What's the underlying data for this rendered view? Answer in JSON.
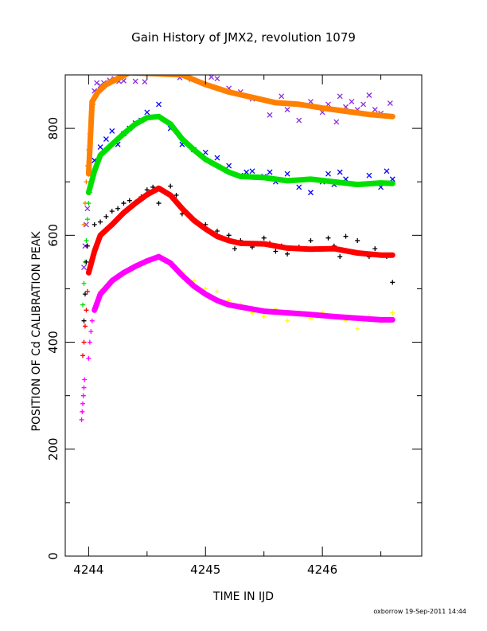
{
  "footer_text": "oxborrow 19-Sep-2011 14:44",
  "chart_data": {
    "type": "scatter",
    "title": "Gain History of JMX2, revolution 1079",
    "xlabel": "TIME IN IJD",
    "ylabel": "POSITION OF Cd CALIBRATION PEAK",
    "xlim": [
      4243.8,
      4246.85
    ],
    "ylim": [
      0,
      900
    ],
    "xticks": [
      4244,
      4245,
      4246
    ],
    "yticks": [
      0,
      200,
      400,
      600,
      800
    ],
    "grid": false,
    "legend": "none",
    "series": [
      {
        "color": "#8a2be2",
        "marker": "x",
        "points": [
          [
            4243.96,
            540
          ],
          [
            4243.97,
            580
          ],
          [
            4243.98,
            620
          ],
          [
            4243.99,
            650
          ],
          [
            4244.02,
            810
          ],
          [
            4244.05,
            870
          ],
          [
            4244.07,
            885
          ],
          [
            4244.1,
            880
          ],
          [
            4244.13,
            885
          ],
          [
            4244.18,
            890
          ],
          [
            4244.22,
            893
          ],
          [
            4244.26,
            888
          ],
          [
            4244.3,
            889
          ],
          [
            4244.4,
            888
          ],
          [
            4244.48,
            887
          ],
          [
            4244.78,
            895
          ],
          [
            4244.88,
            892
          ],
          [
            4245.05,
            896
          ],
          [
            4245.1,
            893
          ],
          [
            4245.2,
            875
          ],
          [
            4245.3,
            868
          ],
          [
            4245.4,
            855
          ],
          [
            4245.55,
            825
          ],
          [
            4245.65,
            860
          ],
          [
            4245.7,
            835
          ],
          [
            4245.8,
            815
          ],
          [
            4245.9,
            850
          ],
          [
            4246.0,
            830
          ],
          [
            4246.05,
            845
          ],
          [
            4246.12,
            812
          ],
          [
            4246.15,
            860
          ],
          [
            4246.2,
            840
          ],
          [
            4246.25,
            850
          ],
          [
            4246.3,
            835
          ],
          [
            4246.35,
            845
          ],
          [
            4246.4,
            862
          ],
          [
            4246.45,
            835
          ],
          [
            4246.5,
            828
          ],
          [
            4246.58,
            847
          ]
        ]
      },
      {
        "color": "#ff8000",
        "marker": "+",
        "points": [
          [
            4243.96,
            620
          ],
          [
            4243.97,
            660
          ],
          [
            4243.98,
            700
          ],
          [
            4243.99,
            730
          ],
          [
            4244.0,
            760
          ],
          [
            4244.01,
            790
          ],
          [
            4244.02,
            820
          ],
          [
            4244.04,
            845
          ],
          [
            4244.06,
            860
          ],
          [
            4244.09,
            872
          ],
          [
            4244.12,
            880
          ],
          [
            4244.16,
            887
          ],
          [
            4244.2,
            892
          ],
          [
            4244.25,
            897
          ],
          [
            4244.3,
            902
          ]
        ]
      },
      {
        "color": "#ff8000",
        "marker": "line",
        "points": [
          [
            4244.0,
            715
          ],
          [
            4244.03,
            850
          ],
          [
            4244.08,
            868
          ],
          [
            4244.15,
            882
          ],
          [
            4244.25,
            893
          ],
          [
            4244.35,
            904
          ],
          [
            4244.8,
            900
          ],
          [
            4245.0,
            882
          ],
          [
            4245.2,
            868
          ],
          [
            4245.4,
            858
          ],
          [
            4245.6,
            848
          ],
          [
            4245.8,
            845
          ],
          [
            4246.0,
            838
          ],
          [
            4246.2,
            832
          ],
          [
            4246.4,
            826
          ],
          [
            4246.6,
            822
          ]
        ]
      },
      {
        "color": "#0000ff",
        "marker": "x",
        "points": [
          [
            4244.05,
            740
          ],
          [
            4244.1,
            765
          ],
          [
            4244.15,
            780
          ],
          [
            4244.2,
            795
          ],
          [
            4244.25,
            770
          ],
          [
            4244.3,
            790
          ],
          [
            4244.35,
            800
          ],
          [
            4244.4,
            810
          ],
          [
            4244.45,
            815
          ],
          [
            4244.5,
            830
          ],
          [
            4244.6,
            845
          ],
          [
            4244.7,
            800
          ],
          [
            4244.8,
            770
          ],
          [
            4244.9,
            760
          ],
          [
            4245.0,
            755
          ],
          [
            4245.1,
            745
          ],
          [
            4245.2,
            730
          ],
          [
            4245.3,
            712
          ],
          [
            4245.35,
            718
          ],
          [
            4245.4,
            720
          ],
          [
            4245.5,
            710
          ],
          [
            4245.55,
            718
          ],
          [
            4245.6,
            700
          ],
          [
            4245.7,
            715
          ],
          [
            4245.8,
            690
          ],
          [
            4245.9,
            680
          ],
          [
            4246.0,
            700
          ],
          [
            4246.05,
            715
          ],
          [
            4246.1,
            695
          ],
          [
            4246.15,
            718
          ],
          [
            4246.2,
            705
          ],
          [
            4246.3,
            695
          ],
          [
            4246.4,
            712
          ],
          [
            4246.5,
            690
          ],
          [
            4246.55,
            720
          ],
          [
            4246.6,
            705
          ]
        ]
      },
      {
        "color": "#00e000",
        "marker": "+",
        "points": [
          [
            4243.95,
            470
          ],
          [
            4243.96,
            510
          ],
          [
            4243.97,
            550
          ],
          [
            4243.98,
            590
          ],
          [
            4243.99,
            630
          ],
          [
            4244.0,
            660
          ],
          [
            4244.01,
            680
          ]
        ]
      },
      {
        "color": "#00e000",
        "marker": "line",
        "points": [
          [
            4244.0,
            680
          ],
          [
            4244.05,
            720
          ],
          [
            4244.1,
            750
          ],
          [
            4244.2,
            770
          ],
          [
            4244.3,
            790
          ],
          [
            4244.4,
            808
          ],
          [
            4244.5,
            820
          ],
          [
            4244.6,
            822
          ],
          [
            4244.7,
            808
          ],
          [
            4244.8,
            780
          ],
          [
            4244.9,
            760
          ],
          [
            4245.0,
            742
          ],
          [
            4245.1,
            730
          ],
          [
            4245.2,
            718
          ],
          [
            4245.3,
            710
          ],
          [
            4245.5,
            708
          ],
          [
            4245.7,
            702
          ],
          [
            4245.9,
            705
          ],
          [
            4246.1,
            700
          ],
          [
            4246.3,
            695
          ],
          [
            4246.5,
            698
          ],
          [
            4246.6,
            697
          ]
        ]
      },
      {
        "color": "#000000",
        "marker": "+",
        "points": [
          [
            4243.96,
            440
          ],
          [
            4243.97,
            490
          ],
          [
            4243.98,
            550
          ],
          [
            4243.99,
            580
          ],
          [
            4244.05,
            620
          ],
          [
            4244.1,
            625
          ],
          [
            4244.15,
            635
          ],
          [
            4244.2,
            645
          ],
          [
            4244.25,
            650
          ],
          [
            4244.3,
            660
          ],
          [
            4244.35,
            665
          ],
          [
            4244.4,
            662
          ],
          [
            4244.45,
            672
          ],
          [
            4244.5,
            685
          ],
          [
            4244.55,
            690
          ],
          [
            4244.6,
            660
          ],
          [
            4244.65,
            680
          ],
          [
            4244.7,
            692
          ],
          [
            4244.75,
            675
          ],
          [
            4244.8,
            640
          ],
          [
            4244.9,
            630
          ],
          [
            4245.0,
            620
          ],
          [
            4245.1,
            608
          ],
          [
            4245.2,
            600
          ],
          [
            4245.25,
            575
          ],
          [
            4245.3,
            590
          ],
          [
            4245.4,
            578
          ],
          [
            4245.5,
            595
          ],
          [
            4245.55,
            585
          ],
          [
            4245.6,
            570
          ],
          [
            4245.65,
            580
          ],
          [
            4245.7,
            565
          ],
          [
            4245.8,
            578
          ],
          [
            4245.9,
            590
          ],
          [
            4246.0,
            575
          ],
          [
            4246.05,
            595
          ],
          [
            4246.1,
            580
          ],
          [
            4246.15,
            560
          ],
          [
            4246.2,
            598
          ],
          [
            4246.3,
            590
          ],
          [
            4246.4,
            560
          ],
          [
            4246.45,
            575
          ],
          [
            4246.55,
            560
          ],
          [
            4246.6,
            512
          ]
        ]
      },
      {
        "color": "#ff0000",
        "marker": "+",
        "points": [
          [
            4243.95,
            375
          ],
          [
            4243.96,
            400
          ],
          [
            4243.97,
            430
          ],
          [
            4243.98,
            460
          ],
          [
            4243.99,
            495
          ]
        ]
      },
      {
        "color": "#ff0000",
        "marker": "line",
        "points": [
          [
            4244.0,
            530
          ],
          [
            4244.05,
            570
          ],
          [
            4244.1,
            600
          ],
          [
            4244.2,
            620
          ],
          [
            4244.3,
            642
          ],
          [
            4244.4,
            660
          ],
          [
            4244.5,
            676
          ],
          [
            4244.6,
            688
          ],
          [
            4244.7,
            675
          ],
          [
            4244.8,
            650
          ],
          [
            4244.9,
            628
          ],
          [
            4245.0,
            612
          ],
          [
            4245.1,
            598
          ],
          [
            4245.2,
            590
          ],
          [
            4245.3,
            585
          ],
          [
            4245.5,
            584
          ],
          [
            4245.7,
            576
          ],
          [
            4245.9,
            574
          ],
          [
            4246.1,
            575
          ],
          [
            4246.3,
            567
          ],
          [
            4246.5,
            563
          ],
          [
            4246.6,
            563
          ]
        ]
      },
      {
        "color": "#ffff00",
        "marker": "+",
        "points": [
          [
            4244.1,
            495
          ],
          [
            4244.2,
            510
          ],
          [
            4244.3,
            530
          ],
          [
            4244.4,
            540
          ],
          [
            4244.5,
            550
          ],
          [
            4244.6,
            560
          ],
          [
            4244.7,
            545
          ],
          [
            4244.8,
            530
          ],
          [
            4244.9,
            515
          ],
          [
            4245.0,
            500
          ],
          [
            4245.1,
            495
          ],
          [
            4245.2,
            478
          ],
          [
            4245.3,
            470
          ],
          [
            4245.4,
            455
          ],
          [
            4245.5,
            448
          ],
          [
            4245.6,
            462
          ],
          [
            4245.7,
            440
          ],
          [
            4245.8,
            455
          ],
          [
            4245.9,
            445
          ],
          [
            4246.0,
            455
          ],
          [
            4246.1,
            450
          ],
          [
            4246.2,
            440
          ],
          [
            4246.3,
            425
          ],
          [
            4246.35,
            440
          ],
          [
            4246.4,
            448
          ],
          [
            4246.5,
            438
          ],
          [
            4246.6,
            455
          ]
        ]
      },
      {
        "color": "#ff00ff",
        "marker": "+",
        "points": [
          [
            4243.94,
            255
          ],
          [
            4243.945,
            270
          ],
          [
            4243.95,
            285
          ],
          [
            4243.955,
            300
          ],
          [
            4243.96,
            315
          ],
          [
            4243.965,
            330
          ],
          [
            4244.0,
            370
          ],
          [
            4244.01,
            400
          ],
          [
            4244.02,
            420
          ],
          [
            4244.03,
            440
          ]
        ]
      },
      {
        "color": "#ff00ff",
        "marker": "line",
        "points": [
          [
            4244.05,
            460
          ],
          [
            4244.1,
            490
          ],
          [
            4244.2,
            515
          ],
          [
            4244.3,
            530
          ],
          [
            4244.4,
            542
          ],
          [
            4244.5,
            552
          ],
          [
            4244.6,
            560
          ],
          [
            4244.7,
            548
          ],
          [
            4244.8,
            525
          ],
          [
            4244.9,
            505
          ],
          [
            4245.0,
            490
          ],
          [
            4245.1,
            478
          ],
          [
            4245.2,
            470
          ],
          [
            4245.3,
            466
          ],
          [
            4245.4,
            462
          ],
          [
            4245.5,
            458
          ],
          [
            4245.7,
            455
          ],
          [
            4245.9,
            452
          ],
          [
            4246.1,
            448
          ],
          [
            4246.3,
            445
          ],
          [
            4246.5,
            442
          ],
          [
            4246.6,
            442
          ]
        ]
      }
    ]
  }
}
